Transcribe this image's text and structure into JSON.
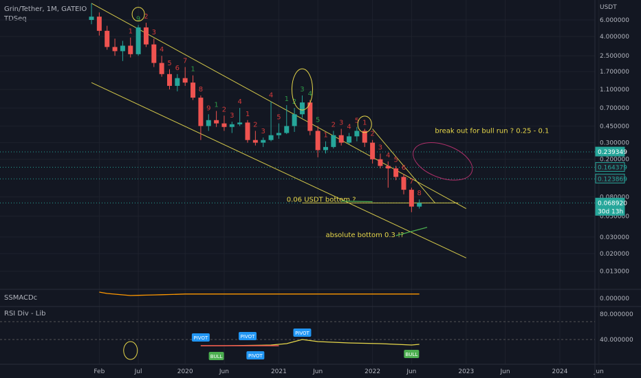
{
  "header": {
    "symbol_line": "Grin/Tether, 1M, GATEIO",
    "indicator": "TDSeq"
  },
  "panes": {
    "macd_label": "SSMACDc",
    "rsi_label": "RSI Div - Lib"
  },
  "colors": {
    "background": "#131722",
    "up": "#26a69a",
    "down": "#ef5350",
    "channel": "#d4c84a",
    "annotation": "#e8d84a",
    "td_up": "#2e9b48",
    "td_down": "#d63a3a",
    "pivot": "#2196f3",
    "bull": "#4caf50"
  },
  "chart_data": {
    "type": "candlestick",
    "price_unit": "USDT",
    "y_scale": "log",
    "y_ticks": [
      "6.000000",
      "4.000000",
      "2.500000",
      "1.700000",
      "1.100000",
      "0.700000",
      "0.450000",
      "0.300000",
      "0.200000",
      "0.080000",
      "0.050000",
      "0.030000",
      "0.020000",
      "0.013000"
    ],
    "x_ticks": [
      "Feb",
      "Jul",
      "2020",
      "Jun",
      "2021",
      "Jun",
      "2022",
      "Jun",
      "2023",
      "Jun",
      "2024",
      "Jun"
    ],
    "price_labels": [
      {
        "value": "0.239349",
        "color": "#26a69a"
      },
      {
        "value": "0.164379",
        "color": "#26a69a"
      },
      {
        "value": "0.123869",
        "color": "#26a69a"
      },
      {
        "value": "0.068920",
        "color": "#26a69a"
      },
      {
        "value": "30d 13h",
        "color": "#26a69a"
      }
    ],
    "horizontal_levels": [
      0.2393,
      0.1644,
      0.1239,
      0.0689
    ],
    "candles": [
      {
        "d": "2019-01",
        "o": 6.0,
        "h": 9.0,
        "l": 5.4,
        "c": 6.5
      },
      {
        "d": "2019-02",
        "o": 6.5,
        "h": 7.2,
        "l": 4.1,
        "c": 4.6
      },
      {
        "d": "2019-03",
        "o": 4.6,
        "h": 5.2,
        "l": 2.9,
        "c": 3.1
      },
      {
        "d": "2019-04",
        "o": 3.1,
        "h": 3.8,
        "l": 2.5,
        "c": 2.8
      },
      {
        "d": "2019-05",
        "o": 2.8,
        "h": 3.6,
        "l": 2.2,
        "c": 3.2
      },
      {
        "d": "2019-06",
        "o": 3.2,
        "h": 3.9,
        "l": 2.4,
        "c": 2.6
      },
      {
        "d": "2019-07",
        "o": 2.6,
        "h": 5.3,
        "l": 2.5,
        "c": 5.0
      },
      {
        "d": "2019-08",
        "o": 5.0,
        "h": 5.6,
        "l": 3.1,
        "c": 3.3
      },
      {
        "d": "2019-09",
        "o": 3.3,
        "h": 3.8,
        "l": 1.9,
        "c": 2.1
      },
      {
        "d": "2019-10",
        "o": 2.1,
        "h": 2.5,
        "l": 1.5,
        "c": 1.6
      },
      {
        "d": "2019-11",
        "o": 1.6,
        "h": 1.8,
        "l": 1.1,
        "c": 1.2
      },
      {
        "d": "2019-12",
        "o": 1.2,
        "h": 1.6,
        "l": 1.05,
        "c": 1.45
      },
      {
        "d": "2020-01",
        "o": 1.45,
        "h": 1.9,
        "l": 1.2,
        "c": 1.3
      },
      {
        "d": "2020-02",
        "o": 1.3,
        "h": 1.55,
        "l": 0.85,
        "c": 0.9
      },
      {
        "d": "2020-03",
        "o": 0.9,
        "h": 0.95,
        "l": 0.32,
        "c": 0.45
      },
      {
        "d": "2020-04",
        "o": 0.45,
        "h": 0.6,
        "l": 0.4,
        "c": 0.52
      },
      {
        "d": "2020-05",
        "o": 0.52,
        "h": 0.65,
        "l": 0.44,
        "c": 0.48
      },
      {
        "d": "2020-06",
        "o": 0.48,
        "h": 0.58,
        "l": 0.4,
        "c": 0.44
      },
      {
        "d": "2020-07",
        "o": 0.44,
        "h": 0.5,
        "l": 0.38,
        "c": 0.47
      },
      {
        "d": "2020-08",
        "o": 0.47,
        "h": 0.7,
        "l": 0.45,
        "c": 0.49
      },
      {
        "d": "2020-09",
        "o": 0.49,
        "h": 0.52,
        "l": 0.3,
        "c": 0.32
      },
      {
        "d": "2020-10",
        "o": 0.32,
        "h": 0.4,
        "l": 0.28,
        "c": 0.3
      },
      {
        "d": "2020-11",
        "o": 0.3,
        "h": 0.34,
        "l": 0.27,
        "c": 0.32
      },
      {
        "d": "2020-12",
        "o": 0.32,
        "h": 0.82,
        "l": 0.31,
        "c": 0.36
      },
      {
        "d": "2021-01",
        "o": 0.36,
        "h": 0.48,
        "l": 0.33,
        "c": 0.38
      },
      {
        "d": "2021-02",
        "o": 0.38,
        "h": 0.75,
        "l": 0.37,
        "c": 0.45
      },
      {
        "d": "2021-03",
        "o": 0.45,
        "h": 0.7,
        "l": 0.39,
        "c": 0.6
      },
      {
        "d": "2021-04",
        "o": 0.6,
        "h": 0.95,
        "l": 0.55,
        "c": 0.8
      },
      {
        "d": "2021-05",
        "o": 0.8,
        "h": 0.85,
        "l": 0.36,
        "c": 0.4
      },
      {
        "d": "2021-06",
        "o": 0.4,
        "h": 0.45,
        "l": 0.21,
        "c": 0.25
      },
      {
        "d": "2021-07",
        "o": 0.25,
        "h": 0.31,
        "l": 0.23,
        "c": 0.27
      },
      {
        "d": "2021-08",
        "o": 0.27,
        "h": 0.4,
        "l": 0.26,
        "c": 0.36
      },
      {
        "d": "2021-09",
        "o": 0.36,
        "h": 0.42,
        "l": 0.28,
        "c": 0.3
      },
      {
        "d": "2021-10",
        "o": 0.3,
        "h": 0.38,
        "l": 0.29,
        "c": 0.35
      },
      {
        "d": "2021-11",
        "o": 0.35,
        "h": 0.44,
        "l": 0.31,
        "c": 0.4
      },
      {
        "d": "2021-12",
        "o": 0.4,
        "h": 0.42,
        "l": 0.27,
        "c": 0.3
      },
      {
        "d": "2022-01",
        "o": 0.3,
        "h": 0.32,
        "l": 0.18,
        "c": 0.2
      },
      {
        "d": "2022-02",
        "o": 0.2,
        "h": 0.23,
        "l": 0.16,
        "c": 0.17
      },
      {
        "d": "2022-03",
        "o": 0.17,
        "h": 0.19,
        "l": 0.1,
        "c": 0.16
      },
      {
        "d": "2022-04",
        "o": 0.16,
        "h": 0.17,
        "l": 0.12,
        "c": 0.13
      },
      {
        "d": "2022-05",
        "o": 0.13,
        "h": 0.14,
        "l": 0.085,
        "c": 0.095
      },
      {
        "d": "2022-06",
        "o": 0.095,
        "h": 0.1,
        "l": 0.055,
        "c": 0.063
      },
      {
        "d": "2022-07",
        "o": 0.063,
        "h": 0.075,
        "l": 0.06,
        "c": 0.0689
      }
    ],
    "td_labels": [
      {
        "d": "2019-07",
        "n": "9",
        "up": true
      },
      {
        "d": "2019-06",
        "n": "1",
        "up": false
      },
      {
        "d": "2019-08",
        "n": "2",
        "up": false
      },
      {
        "d": "2019-09",
        "n": "3",
        "up": false
      },
      {
        "d": "2019-10",
        "n": "4",
        "up": false
      },
      {
        "d": "2019-11",
        "n": "5",
        "up": false
      },
      {
        "d": "2019-12",
        "n": "6",
        "up": false
      },
      {
        "d": "2020-01",
        "n": "7",
        "up": false
      },
      {
        "d": "2020-02",
        "n": "1",
        "up": true
      },
      {
        "d": "2020-03",
        "n": "8",
        "up": false
      },
      {
        "d": "2020-04",
        "n": "9",
        "up": false
      },
      {
        "d": "2020-05",
        "n": "1",
        "up": true
      },
      {
        "d": "2020-06",
        "n": "2",
        "up": false
      },
      {
        "d": "2020-07",
        "n": "3",
        "up": false
      },
      {
        "d": "2020-08",
        "n": "4",
        "up": false
      },
      {
        "d": "2020-09",
        "n": "1",
        "up": false
      },
      {
        "d": "2020-10",
        "n": "2",
        "up": false
      },
      {
        "d": "2020-11",
        "n": "3",
        "up": false
      },
      {
        "d": "2020-12",
        "n": "4",
        "up": false
      },
      {
        "d": "2021-01",
        "n": "5",
        "up": false
      },
      {
        "d": "2021-02",
        "n": "1",
        "up": true
      },
      {
        "d": "2021-03",
        "n": "2",
        "up": true
      },
      {
        "d": "2021-04",
        "n": "3",
        "up": true
      },
      {
        "d": "2021-05",
        "n": "4",
        "up": true
      },
      {
        "d": "2021-06",
        "n": "5",
        "up": true
      },
      {
        "d": "2021-07",
        "n": "1",
        "up": false
      },
      {
        "d": "2021-08",
        "n": "2",
        "up": false
      },
      {
        "d": "2021-09",
        "n": "3",
        "up": false
      },
      {
        "d": "2021-10",
        "n": "4",
        "up": false
      },
      {
        "d": "2021-11",
        "n": "5",
        "up": false
      },
      {
        "d": "2021-12",
        "n": "1",
        "up": false
      },
      {
        "d": "2022-01",
        "n": "2",
        "up": false
      },
      {
        "d": "2022-02",
        "n": "3",
        "up": false
      },
      {
        "d": "2022-03",
        "n": "4",
        "up": false
      },
      {
        "d": "2022-04",
        "n": "5",
        "up": false
      },
      {
        "d": "2022-05",
        "n": "6",
        "up": false
      },
      {
        "d": "2022-06",
        "n": "7",
        "up": false
      },
      {
        "d": "2022-07",
        "n": "8",
        "up": false
      }
    ],
    "channel_lines": [
      {
        "from": {
          "d": "2019-01",
          "v": 9.0
        },
        "to": {
          "d": "2023-01",
          "v": 0.06
        }
      },
      {
        "from": {
          "d": "2019-01",
          "v": 1.3
        },
        "to": {
          "d": "2023-01",
          "v": 0.018
        }
      },
      {
        "from": {
          "d": "2022-01",
          "v": 0.42
        },
        "to": {
          "d": "2022-09",
          "v": 0.069
        }
      }
    ],
    "bottom_level": {
      "from": "2021-04",
      "to": "2022-12",
      "v": 0.0689
    },
    "annotations": [
      {
        "text": "break out for bull run ? 0.25 - 0.1",
        "d": "2022-09",
        "v": 0.38
      },
      {
        "text": "0.06 USDT bottom ?",
        "d": "2021-02",
        "v": 0.071
      },
      {
        "text": "absolute bottom 0.3 !?",
        "d": "2021-07",
        "v": 0.03
      }
    ],
    "macd_ticks": [
      "0.000000"
    ],
    "rsi_ticks": [
      "80.000000",
      "40.000000"
    ],
    "rsi_markers": [
      {
        "text": "PIVOT",
        "d": "2020-03",
        "type": "pivot"
      },
      {
        "text": "BULL",
        "d": "2020-05",
        "type": "bull"
      },
      {
        "text": "PIVOT",
        "d": "2020-09",
        "type": "pivot"
      },
      {
        "text": "PIVOT",
        "d": "2020-10",
        "type": "pivot"
      },
      {
        "text": "PIVOT",
        "d": "2021-04",
        "type": "pivot"
      },
      {
        "text": "BULL",
        "d": "2022-06",
        "type": "bull"
      }
    ]
  }
}
